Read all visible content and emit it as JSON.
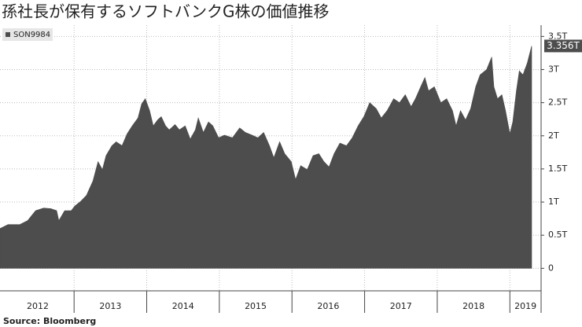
{
  "chart_data": {
    "type": "area",
    "title": "孫社長が保有するソフトバンクG株の価値推移",
    "source": "Source: Bloomberg",
    "series": [
      {
        "name": "SON9984",
        "color": "#4d4d4d",
        "x": [
          2011.98,
          2012.09,
          2012.25,
          2012.36,
          2012.47,
          2012.58,
          2012.68,
          2012.76,
          2012.79,
          2012.87,
          2012.96,
          2013.01,
          2013.09,
          2013.17,
          2013.26,
          2013.33,
          2013.39,
          2013.44,
          2013.52,
          2013.58,
          2013.66,
          2013.73,
          2013.8,
          2013.88,
          2013.93,
          2013.98,
          2014.04,
          2014.09,
          2014.15,
          2014.2,
          2014.26,
          2014.31,
          2014.39,
          2014.45,
          2014.53,
          2014.6,
          2014.67,
          2014.71,
          2014.78,
          2014.85,
          2014.91,
          2014.99,
          2015.07,
          2015.18,
          2015.28,
          2015.36,
          2015.45,
          2015.53,
          2015.61,
          2015.69,
          2015.75,
          2015.83,
          2015.9,
          2015.99,
          2016.05,
          2016.12,
          2016.21,
          2016.29,
          2016.37,
          2016.44,
          2016.51,
          2016.58,
          2016.66,
          2016.75,
          2016.83,
          2016.91,
          2016.99,
          2017.07,
          2017.16,
          2017.23,
          2017.31,
          2017.4,
          2017.48,
          2017.56,
          2017.64,
          2017.7,
          2017.78,
          2017.83,
          2017.88,
          2017.96,
          2018.05,
          2018.13,
          2018.21,
          2018.26,
          2018.32,
          2018.39,
          2018.46,
          2018.53,
          2018.59,
          2018.68,
          2018.75,
          2018.78,
          2018.83,
          2018.89,
          2018.94,
          2019.0,
          2019.04,
          2019.09,
          2019.13,
          2019.18,
          2019.24,
          2019.3
        ],
        "values": [
          0.6,
          0.66,
          0.66,
          0.72,
          0.87,
          0.91,
          0.9,
          0.87,
          0.72,
          0.87,
          0.87,
          0.94,
          1.01,
          1.1,
          1.32,
          1.61,
          1.49,
          1.7,
          1.85,
          1.91,
          1.85,
          2.03,
          2.15,
          2.27,
          2.48,
          2.56,
          2.38,
          2.15,
          2.24,
          2.29,
          2.15,
          2.09,
          2.17,
          2.09,
          2.15,
          1.95,
          2.09,
          2.27,
          2.05,
          2.21,
          2.15,
          1.97,
          2.01,
          1.97,
          2.12,
          2.05,
          2.01,
          1.97,
          2.05,
          1.85,
          1.67,
          1.91,
          1.73,
          1.61,
          1.34,
          1.55,
          1.49,
          1.7,
          1.73,
          1.61,
          1.53,
          1.73,
          1.89,
          1.85,
          1.97,
          2.15,
          2.29,
          2.5,
          2.41,
          2.27,
          2.38,
          2.56,
          2.5,
          2.62,
          2.44,
          2.56,
          2.76,
          2.88,
          2.68,
          2.74,
          2.5,
          2.56,
          2.38,
          2.15,
          2.38,
          2.24,
          2.41,
          2.74,
          2.92,
          3.0,
          3.19,
          2.74,
          2.56,
          2.62,
          2.38,
          2.03,
          2.21,
          2.68,
          2.98,
          2.92,
          3.1,
          3.356
        ],
        "value_labels": [
          null,
          null,
          null,
          null,
          null,
          null,
          null,
          null,
          null,
          null,
          null,
          null,
          null,
          null,
          null,
          null,
          null,
          null,
          null,
          null,
          null,
          null,
          null,
          null,
          null,
          null,
          null,
          null,
          null,
          null,
          null,
          null,
          null,
          null,
          null,
          null,
          null,
          null,
          null,
          null,
          null,
          null,
          null,
          null,
          null,
          null,
          null,
          null,
          null,
          null,
          null,
          null,
          null,
          null,
          null,
          null,
          null,
          null,
          null,
          null,
          null,
          null,
          null,
          null,
          null,
          null,
          null,
          null,
          null,
          null,
          null,
          null,
          null,
          null,
          null,
          null,
          null,
          null,
          null,
          null,
          null,
          null,
          null,
          null,
          null,
          null,
          null,
          null,
          null,
          null,
          null,
          null,
          null,
          null,
          null,
          null,
          null,
          null,
          null,
          null,
          null,
          "3.356T"
        ]
      }
    ],
    "x_labels": [
      "2012",
      "2013",
      "2014",
      "2015",
      "2016",
      "2017",
      "2018",
      "2019"
    ],
    "xlim": [
      2011.98,
      2019.43
    ],
    "ylim": [
      -0.34,
      3.67
    ],
    "yticks": [
      0,
      {
        "value": 0.5,
        "label": "0.5T"
      },
      {
        "value": 1,
        "label": "1T"
      },
      {
        "value": 1.5,
        "label": "1.5T"
      },
      {
        "value": 2,
        "label": "2T"
      },
      {
        "value": 2.5,
        "label": "2.5T"
      },
      {
        "value": 3,
        "label": "3T"
      },
      {
        "value": 3.5,
        "label": "3.5T"
      }
    ],
    "grid": true,
    "legend": "top-left"
  }
}
